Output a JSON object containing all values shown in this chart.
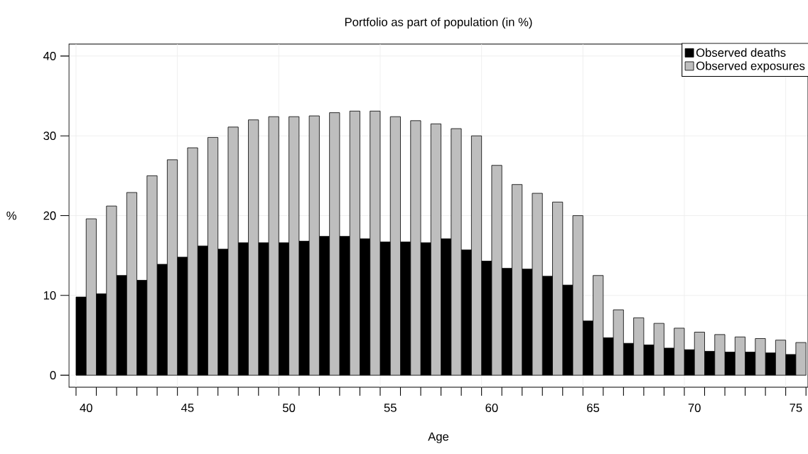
{
  "chart_data": {
    "type": "bar",
    "title": "Portfolio as part of population (in %)",
    "xlabel": "Age",
    "ylabel": "%",
    "categories": [
      "40",
      null,
      null,
      null,
      null,
      "45",
      null,
      null,
      null,
      null,
      "50",
      null,
      null,
      null,
      null,
      "55",
      null,
      null,
      null,
      null,
      "60",
      null,
      null,
      null,
      null,
      "65",
      null,
      null,
      null,
      null,
      "70",
      null,
      null,
      null,
      null,
      "75"
    ],
    "series": [
      {
        "name": "Observed deaths",
        "color": "#000000",
        "values": [
          9.8,
          10.2,
          12.5,
          11.9,
          13.9,
          14.8,
          16.2,
          15.8,
          16.6,
          16.6,
          16.6,
          16.8,
          17.4,
          17.4,
          17.1,
          16.7,
          16.7,
          16.6,
          17.1,
          15.7,
          14.3,
          13.4,
          13.3,
          12.4,
          11.3,
          6.8,
          4.7,
          4.0,
          3.8,
          3.4,
          3.2,
          3.0,
          2.9,
          2.9,
          2.8,
          2.6
        ]
      },
      {
        "name": "Observed exposures",
        "color": "#bebebe",
        "values": [
          19.6,
          21.2,
          22.9,
          25.0,
          27.0,
          28.5,
          29.8,
          31.1,
          32.0,
          32.4,
          32.4,
          32.5,
          32.9,
          33.1,
          33.1,
          32.4,
          31.9,
          31.5,
          30.9,
          30.0,
          26.3,
          23.9,
          22.8,
          21.7,
          20.0,
          12.5,
          8.2,
          7.2,
          6.5,
          5.9,
          5.4,
          5.1,
          4.8,
          4.6,
          4.4,
          4.1
        ]
      }
    ],
    "ylim": [
      -1.5,
      41.5
    ],
    "yticks": [
      0,
      10,
      20,
      30,
      40
    ],
    "grid": true,
    "legend": "top right"
  }
}
